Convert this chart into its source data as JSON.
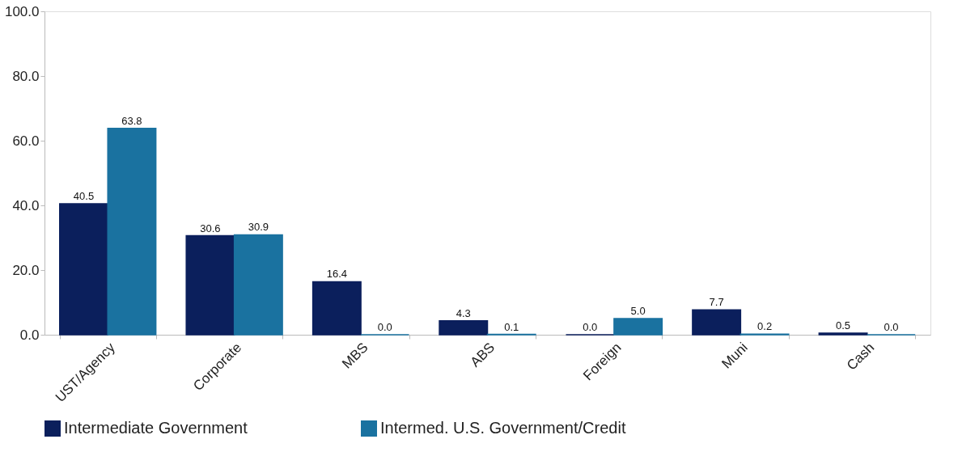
{
  "chart_data": {
    "type": "bar",
    "categories": [
      "UST/Agency",
      "Corporate",
      "MBS",
      "ABS",
      "Foreign",
      "Muni",
      "Cash"
    ],
    "series": [
      {
        "name": "Intermediate Government",
        "color": "#0b1f5c",
        "values": [
          40.5,
          30.6,
          16.4,
          4.3,
          0.0,
          7.7,
          0.5
        ],
        "value_labels": [
          "40.5",
          "30.6",
          "16.4",
          "4.3",
          "0.0",
          "7.7",
          "0.5"
        ]
      },
      {
        "name": "Intermed. U.S. Government/Credit",
        "color": "#1a72a0",
        "values": [
          63.8,
          30.9,
          0.0,
          0.1,
          5.0,
          0.2,
          0.0
        ],
        "value_labels": [
          "63.8",
          "30.9",
          "0.0",
          "0.1",
          "5.0",
          "0.2",
          "0.0"
        ]
      }
    ],
    "ylim": [
      0,
      100
    ],
    "yticks": [
      {
        "value": 0,
        "label": "0.0"
      },
      {
        "value": 20,
        "label": "20.0"
      },
      {
        "value": 40,
        "label": "40.0"
      },
      {
        "value": 60,
        "label": "60.0"
      },
      {
        "value": 80,
        "label": "80.0"
      },
      {
        "value": 100,
        "label": "100.0"
      }
    ],
    "grid": false,
    "legend": "bottom"
  }
}
